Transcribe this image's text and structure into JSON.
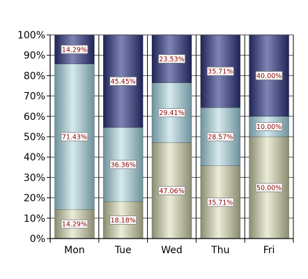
{
  "chart_data": {
    "type": "bar",
    "stacked": "percent",
    "categories": [
      "Mon",
      "Tue",
      "Wed",
      "Thu",
      "Fri"
    ],
    "series": [
      {
        "values": [
          14.29,
          18.18,
          47.06,
          35.71,
          50.0
        ],
        "labels": [
          "14.29%",
          "18.18%",
          "47.06%",
          "35.71%",
          "50.00%"
        ],
        "color": "#c6c8ac"
      },
      {
        "values": [
          71.43,
          36.36,
          29.41,
          28.57,
          10.0
        ],
        "labels": [
          "71.43%",
          "36.36%",
          "29.41%",
          "28.57%",
          "10.00%"
        ],
        "color": "#a9c9d1"
      },
      {
        "values": [
          14.29,
          45.45,
          23.53,
          35.71,
          40.0
        ],
        "labels": [
          "14.29%",
          "45.45%",
          "23.53%",
          "35.71%",
          "40.00%"
        ],
        "color": "#3c4178"
      }
    ],
    "yticks": [
      "0%",
      "10%",
      "20%",
      "30%",
      "40%",
      "50%",
      "60%",
      "70%",
      "80%",
      "90%",
      "100%"
    ],
    "ylim": [
      0,
      100
    ],
    "grid": true,
    "title": "",
    "xlabel": "",
    "ylabel": ""
  }
}
